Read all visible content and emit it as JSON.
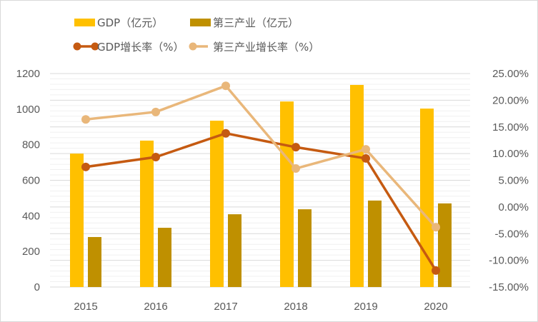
{
  "chart_data": {
    "type": "bar",
    "title": "",
    "categories": [
      "2015",
      "2016",
      "2017",
      "2018",
      "2019",
      "2020"
    ],
    "series": [
      {
        "name": "GDP（亿元）",
        "kind": "bar",
        "axis": "left",
        "color": "#FFC000",
        "values": [
          750,
          823,
          935,
          1043,
          1136,
          1003
        ]
      },
      {
        "name": "第三产业（亿元）",
        "kind": "bar",
        "axis": "left",
        "color": "#BF9000",
        "values": [
          281,
          333,
          409,
          437,
          486,
          470
        ]
      },
      {
        "name": "GDP增长率（%）",
        "kind": "line",
        "axis": "right",
        "color": "#C55A11",
        "values": [
          7.5,
          9.35,
          13.8,
          11.2,
          9.1,
          -11.9
        ]
      },
      {
        "name": "第三产业增长率（%）",
        "kind": "line",
        "axis": "right",
        "color": "#E9B77A",
        "values": [
          16.4,
          17.8,
          22.7,
          7.2,
          10.8,
          -3.8
        ]
      }
    ],
    "y_left": {
      "range": [
        0,
        1200
      ],
      "ticks": [
        "0",
        "200",
        "400",
        "600",
        "800",
        "1000",
        "1200"
      ]
    },
    "y_right": {
      "range": [
        -15,
        25
      ],
      "ticks": [
        "-15.00%",
        "-10.00%",
        "-5.00%",
        "0.00%",
        "5.00%",
        "10.00%",
        "15.00%",
        "20.00%",
        "25.00%"
      ]
    },
    "grid": true,
    "legend_position": "top"
  }
}
